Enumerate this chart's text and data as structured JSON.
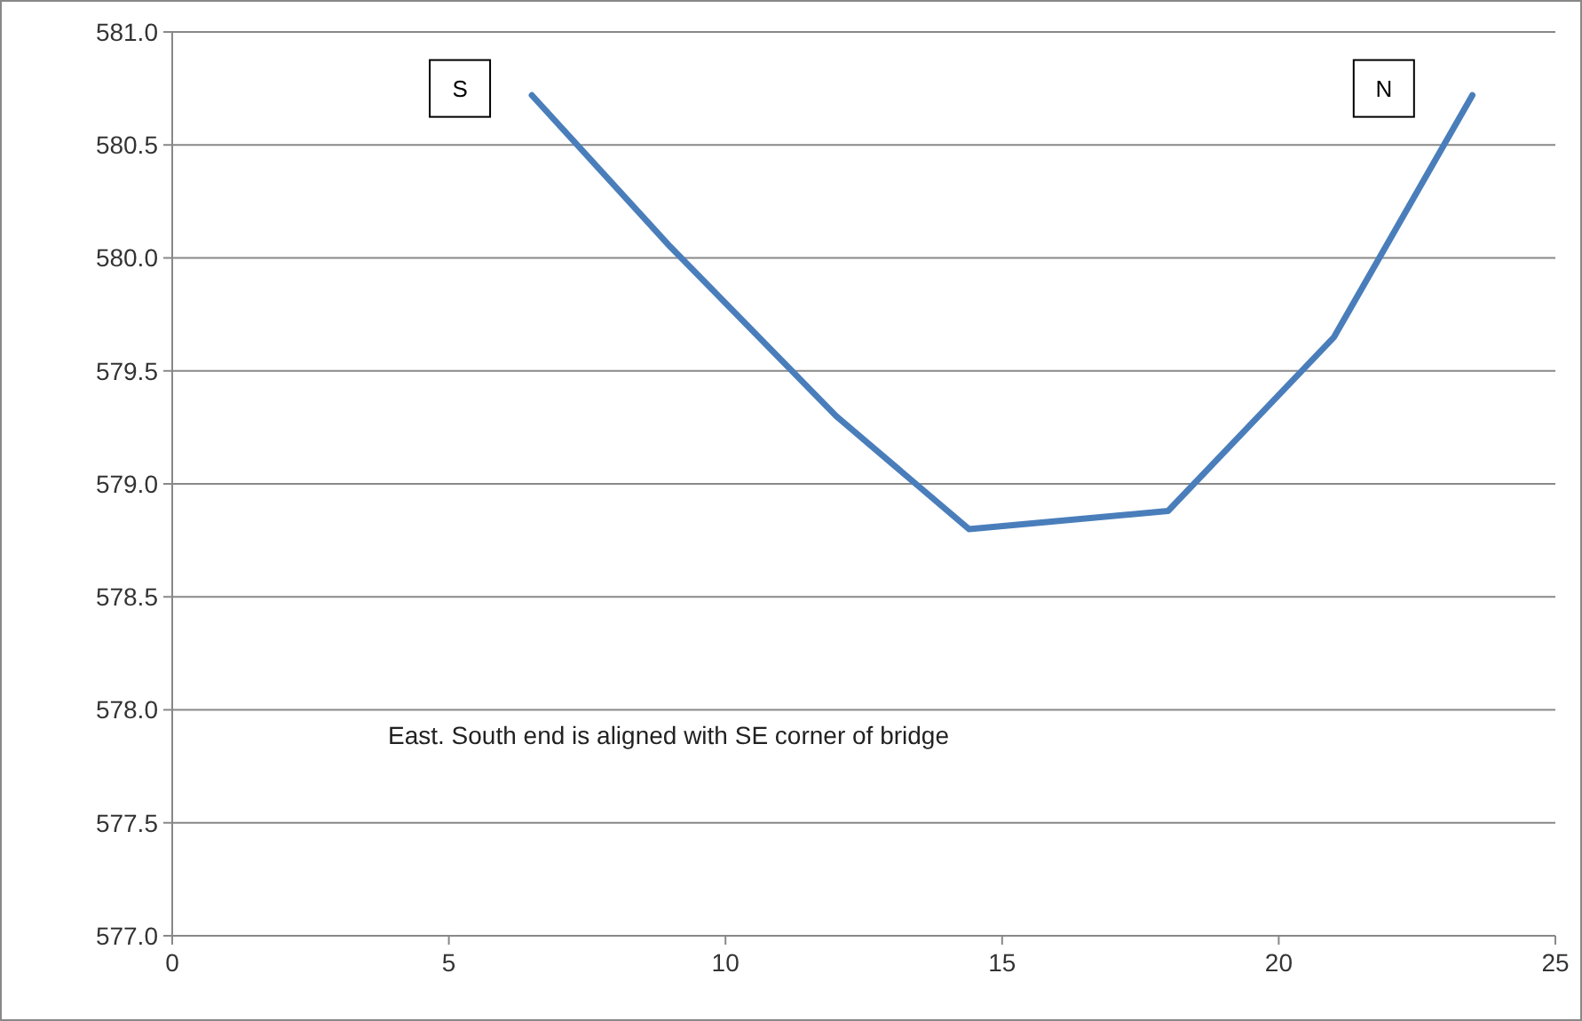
{
  "chart_data": {
    "type": "line",
    "x": [
      6.5,
      9,
      12,
      14.4,
      18,
      21,
      23.5
    ],
    "series": [
      {
        "color": "#4a7ebb",
        "values": [
          580.72,
          580.05,
          579.3,
          578.8,
          578.88,
          579.65,
          580.72
        ]
      }
    ],
    "xlim": [
      0,
      25
    ],
    "xticks": [
      0,
      5,
      10,
      15,
      20,
      25
    ],
    "ylim": [
      577,
      581
    ],
    "yticks": [
      {
        "value": 577,
        "label": "577.0"
      },
      {
        "value": 577.5,
        "label": "577.5"
      },
      {
        "value": 578,
        "label": "578.0"
      },
      {
        "value": 578.5,
        "label": "578.5"
      },
      {
        "value": 579,
        "label": "579.0"
      },
      {
        "value": 579.5,
        "label": "579.5"
      },
      {
        "value": 580,
        "label": "580.0"
      },
      {
        "value": 580.5,
        "label": "580.5"
      },
      {
        "value": 581,
        "label": "581.0"
      }
    ],
    "grid": "y",
    "marker": "none",
    "line_style": "solid",
    "annotations": [
      {
        "text": "S",
        "x": 5.2,
        "y": 580.75
      },
      {
        "text": "N",
        "x": 21.9,
        "y": 580.75
      },
      "East.  South end is aligned with SE corner of bridge"
    ]
  }
}
